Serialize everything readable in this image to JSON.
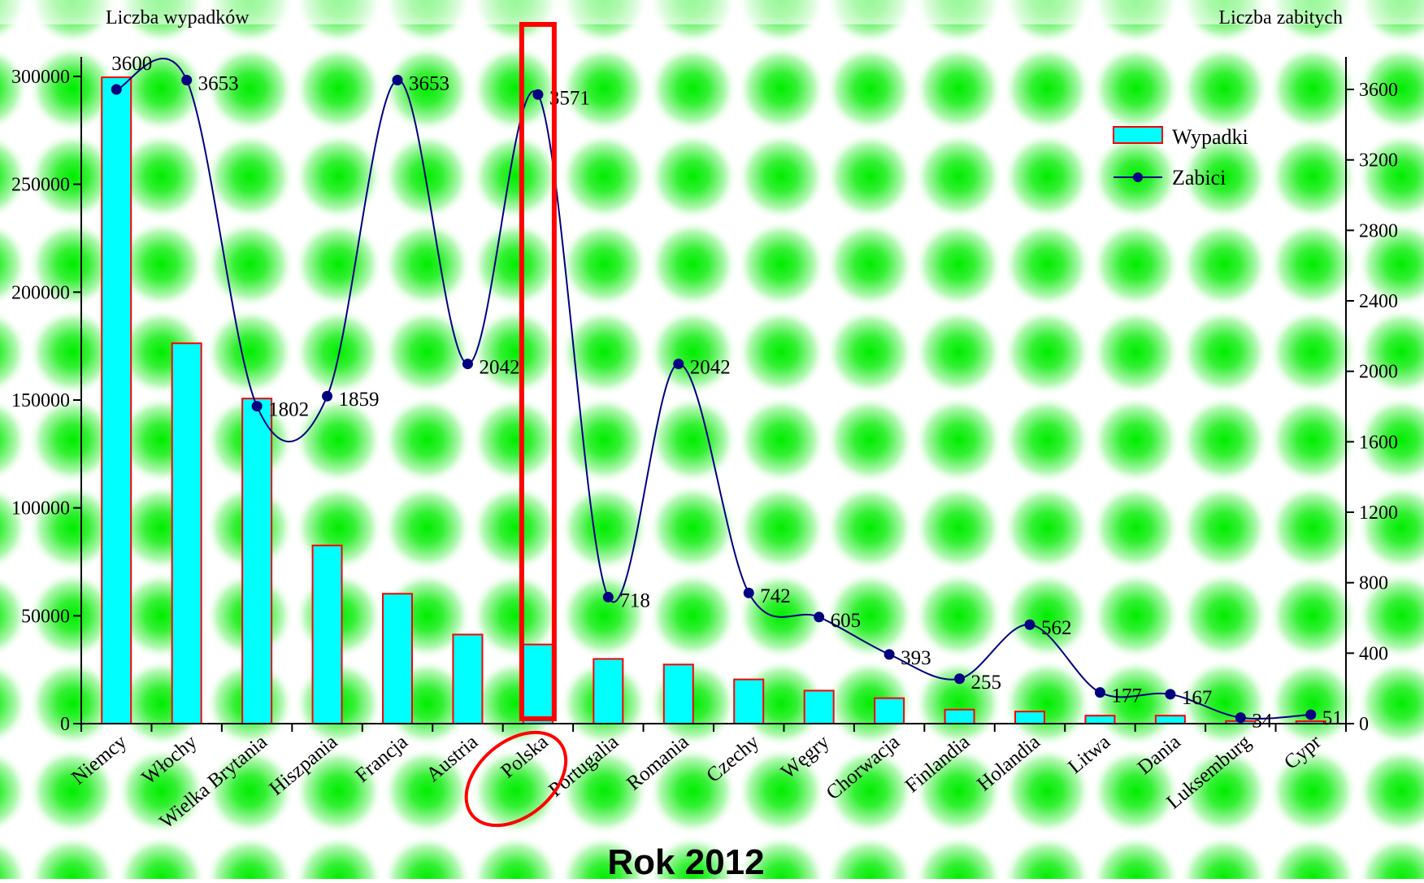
{
  "chart_data": {
    "type": "bar",
    "title": "Rok 2012",
    "left_axis_label": "Liczba wypadków",
    "right_axis_label": "Liczba zabitych",
    "categories": [
      "Niemcy",
      "Włochy",
      "Wielka Brytania",
      "Hiszpania",
      "Francja",
      "Austria",
      "Polska",
      "Portugalia",
      "Romania",
      "Czechy",
      "Węgry",
      "Chorwacja",
      "Finlandia",
      "Holandia",
      "Litwa",
      "Dania",
      "Luksemburg",
      "Cypr"
    ],
    "left_axis": {
      "min": 0,
      "max": 300000,
      "ticks": [
        "0",
        "50000",
        "100000",
        "150000",
        "200000",
        "250000",
        "300000"
      ],
      "tick_values": [
        0,
        50000,
        100000,
        150000,
        200000,
        250000,
        300000
      ]
    },
    "right_axis": {
      "min": 0,
      "max": 3600,
      "ticks": [
        "0",
        "400",
        "800",
        "1200",
        "1600",
        "2000",
        "2400",
        "2800",
        "3200",
        "3600"
      ],
      "tick_values": [
        0,
        400,
        800,
        1200,
        1600,
        2000,
        2400,
        2800,
        3200,
        3600
      ]
    },
    "series": [
      {
        "name": "Wypadki",
        "kind": "bar",
        "axis": "left",
        "color": "#00ffff",
        "border": "#ff0000",
        "values": [
          299600,
          176300,
          150700,
          82600,
          60200,
          41300,
          36700,
          30000,
          27400,
          20500,
          15300,
          11800,
          6500,
          5600,
          3700,
          3700,
          1200,
          1100
        ]
      },
      {
        "name": "Zabici",
        "kind": "line",
        "axis": "right",
        "color": "#000080",
        "smooth": true,
        "values": [
          3600,
          3653,
          1802,
          1859,
          3653,
          2042,
          3571,
          718,
          2042,
          742,
          605,
          393,
          255,
          562,
          177,
          167,
          34,
          51
        ],
        "labels": [
          "3600",
          "3653",
          "1802",
          "1859",
          "3653",
          "2042",
          "3571",
          "718",
          "2042",
          "742",
          "605",
          "393",
          "255",
          "562",
          "177",
          "167",
          "34",
          "51"
        ]
      }
    ],
    "legend": {
      "placement": "top-right",
      "items": [
        "Wypadki",
        "Zabici"
      ]
    },
    "highlight": {
      "category": "Polska",
      "shape": "rectangle and ellipse",
      "color": "#ff0000"
    },
    "background": "green glow pattern",
    "grid": false
  }
}
